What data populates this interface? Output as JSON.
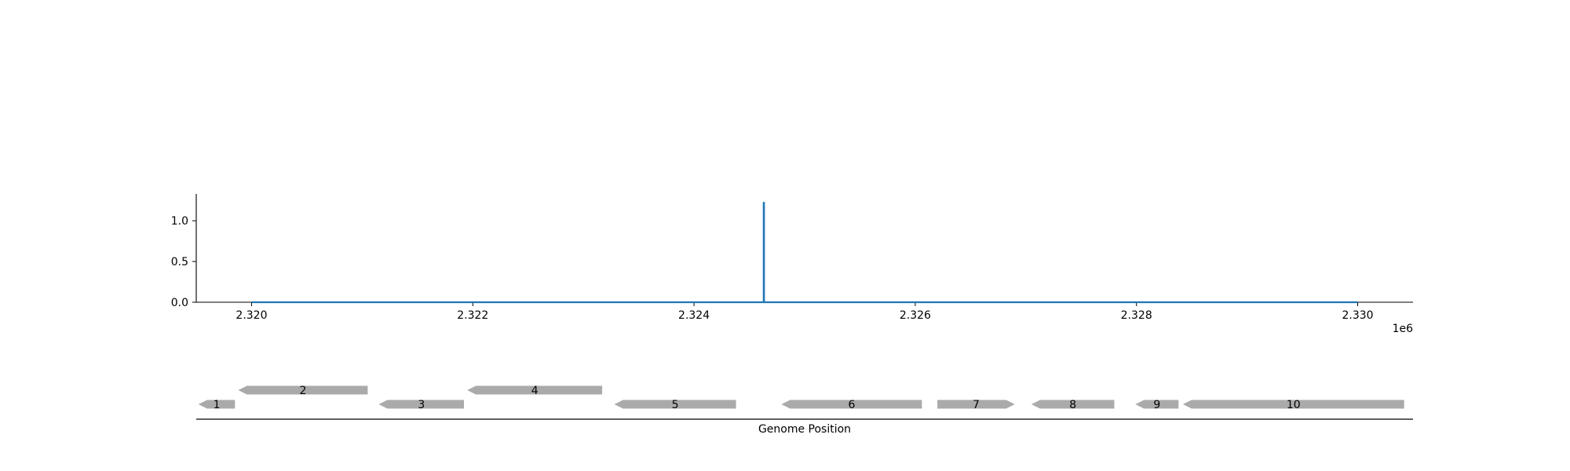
{
  "chart_data": [
    {
      "type": "line",
      "x_range": [
        2319500,
        2330500
      ],
      "ylim": [
        0,
        1.33
      ],
      "y_ticks": [
        {
          "value": 0.0,
          "label": "0.0"
        },
        {
          "value": 0.5,
          "label": "0.5"
        },
        {
          "value": 1.0,
          "label": "1.0"
        }
      ],
      "x_ticks": [
        {
          "value": 2320000,
          "label": "2.320"
        },
        {
          "value": 2322000,
          "label": "2.322"
        },
        {
          "value": 2324000,
          "label": "2.324"
        },
        {
          "value": 2326000,
          "label": "2.326"
        },
        {
          "value": 2328000,
          "label": "2.328"
        },
        {
          "value": 2330000,
          "label": "2.330"
        }
      ],
      "x_offset_label": "1e6",
      "series": [
        {
          "color": "#1f77b4",
          "points": [
            {
              "x": 2320000,
              "y": 0
            },
            {
              "x": 2324630,
              "y": 0
            },
            {
              "x": 2324630,
              "y": 1.22
            },
            {
              "x": 2324633,
              "y": 1.22
            },
            {
              "x": 2324633,
              "y": 0
            },
            {
              "x": 2330000,
              "y": 0
            }
          ]
        }
      ],
      "grid": false
    },
    {
      "type": "gene-track",
      "xlabel": "Genome Position",
      "gene_color": "#aaaaaa",
      "genes": [
        {
          "label": "1",
          "start": 2319520,
          "end": 2319850,
          "strand": -1,
          "row": 0
        },
        {
          "label": "2",
          "start": 2319880,
          "end": 2321050,
          "strand": -1,
          "row": 1
        },
        {
          "label": "3",
          "start": 2321150,
          "end": 2321920,
          "strand": -1,
          "row": 0
        },
        {
          "label": "4",
          "start": 2321950,
          "end": 2323170,
          "strand": -1,
          "row": 1
        },
        {
          "label": "5",
          "start": 2323280,
          "end": 2324380,
          "strand": -1,
          "row": 0
        },
        {
          "label": "6",
          "start": 2324790,
          "end": 2326060,
          "strand": -1,
          "row": 0
        },
        {
          "label": "7",
          "start": 2326200,
          "end": 2326900,
          "strand": 1,
          "row": 0
        },
        {
          "label": "8",
          "start": 2327050,
          "end": 2327800,
          "strand": -1,
          "row": 0
        },
        {
          "label": "9",
          "start": 2327990,
          "end": 2328380,
          "strand": -1,
          "row": 0
        },
        {
          "label": "10",
          "start": 2328420,
          "end": 2330420,
          "strand": -1,
          "row": 0
        }
      ]
    }
  ]
}
